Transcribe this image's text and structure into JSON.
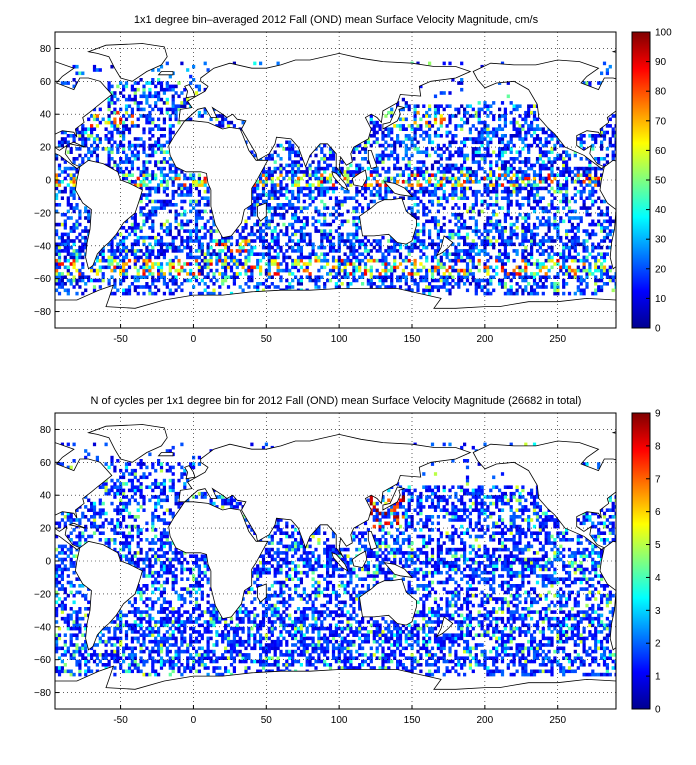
{
  "panels": [
    {
      "title": "1x1 degree bin–averaged 2012 Fall (OND) mean Surface Velocity Magnitude, cm/s",
      "colorbar": {
        "min": 0,
        "max": 100,
        "ticks": [
          "0",
          "10",
          "20",
          "30",
          "40",
          "50",
          "60",
          "70",
          "80",
          "90",
          "100"
        ]
      }
    },
    {
      "title": "N of cycles per 1x1 degree bin for 2012 Fall (OND) mean Surface Velocity Magnitude (26682 in total)",
      "colorbar": {
        "min": 0,
        "max": 9,
        "ticks": [
          "0",
          "1",
          "2",
          "3",
          "4",
          "5",
          "6",
          "7",
          "8",
          "9"
        ]
      }
    }
  ],
  "map_axes": {
    "x_ticks": [
      "-50",
      "0",
      "50",
      "100",
      "150",
      "200",
      "250"
    ],
    "y_ticks": [
      "80",
      "60",
      "40",
      "20",
      "0",
      "−20",
      "−40",
      "−60",
      "−80"
    ],
    "x_range": [
      -95,
      290
    ],
    "y_range": [
      -90,
      90
    ]
  },
  "colors": {
    "colormap": "jet",
    "land": "#ffffff",
    "coast": "#000000",
    "grid": "#000000"
  }
}
